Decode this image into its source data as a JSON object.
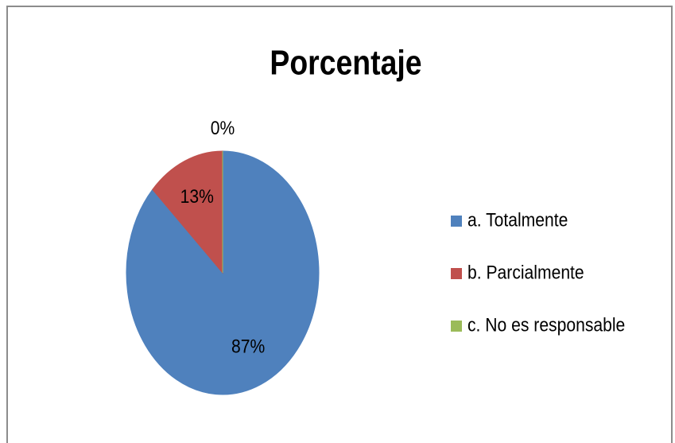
{
  "chart_data": {
    "type": "pie",
    "title": "Porcentaje",
    "categories": [
      "a. Totalmente",
      "b. Parcialmente",
      "c. No es responsable"
    ],
    "values": [
      87,
      13,
      0
    ],
    "value_labels": [
      "87%",
      "13%",
      "0%"
    ],
    "colors": [
      "#4f81bd",
      "#c0504d",
      "#9bbb59"
    ],
    "legend": "right"
  }
}
